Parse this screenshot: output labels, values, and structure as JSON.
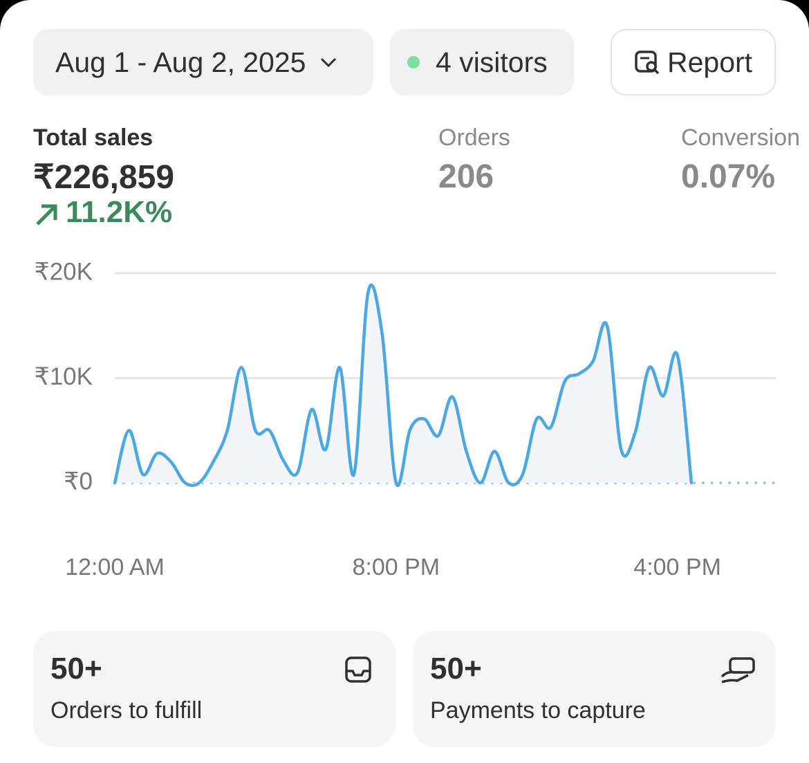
{
  "header": {
    "date_range": "Aug 1 - Aug 2, 2025",
    "visitors": "4 visitors",
    "report": "Report"
  },
  "metrics": [
    {
      "label": "Total sales",
      "value": "₹226,859",
      "change": "11.2K%"
    },
    {
      "label": "Orders",
      "value": "206"
    },
    {
      "label": "Conversion",
      "value": "0.07%"
    }
  ],
  "chart_data": {
    "type": "line",
    "categories": [
      "12:00 AM",
      null,
      null,
      null,
      null,
      null,
      null,
      null,
      null,
      null,
      null,
      null,
      null,
      null,
      null,
      null,
      null,
      null,
      null,
      null,
      "8:00 PM",
      null,
      null,
      null,
      null,
      null,
      null,
      null,
      null,
      null,
      null,
      null,
      null,
      null,
      null,
      null,
      null,
      null,
      null,
      null,
      "4:00 PM",
      null,
      null,
      null,
      null,
      null,
      null,
      null
    ],
    "series": [
      {
        "color": "#4aa8e4",
        "values": [
          0,
          5000,
          800,
          2800,
          2000,
          0,
          0,
          2000,
          5000,
          11000,
          5000,
          5000,
          2100,
          1000,
          7000,
          3200,
          11000,
          800,
          18100,
          14300,
          0,
          5100,
          6100,
          4500,
          8200,
          3000,
          0,
          3000,
          0,
          800,
          6100,
          5300,
          9700,
          10400,
          11600,
          15000,
          3200,
          4800,
          11000,
          8300,
          12200,
          0,
          null,
          null,
          null,
          null,
          null,
          null
        ]
      },
      {
        "color": "#8cc8e8",
        "dashed": true,
        "values": [
          0,
          0,
          0,
          0,
          0,
          0,
          0,
          0,
          0,
          0,
          0,
          0,
          0,
          0,
          0,
          0,
          0,
          0,
          0,
          0,
          0,
          0,
          0,
          0,
          0,
          0,
          0,
          0,
          0,
          0,
          0,
          0,
          0,
          0,
          0,
          0,
          0,
          0,
          0,
          0,
          0,
          0,
          0,
          0,
          0,
          0,
          0,
          0
        ]
      }
    ],
    "ylim": [
      0,
      20000
    ],
    "yticks": [
      {
        "value": 0,
        "label": "₹0"
      },
      {
        "value": 10000,
        "label": "₹10K"
      },
      {
        "value": 20000,
        "label": "₹20K"
      }
    ],
    "grid": true
  },
  "cards": [
    {
      "value": "50+",
      "label": "Orders to fulfill"
    },
    {
      "value": "50+",
      "label": "Payments to capture"
    }
  ]
}
